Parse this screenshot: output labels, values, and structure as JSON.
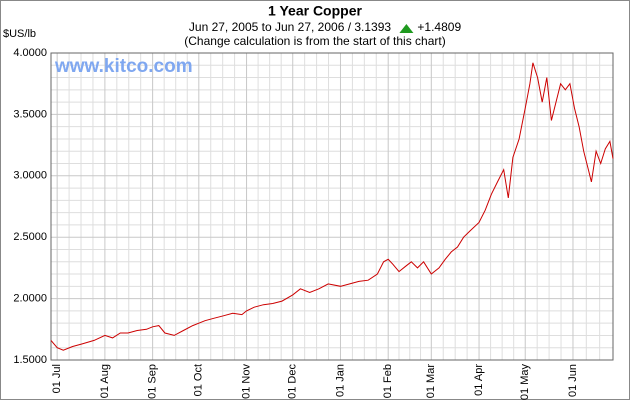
{
  "chart_data": {
    "type": "line",
    "title": "1 Year Copper",
    "subtitle": "Jun 27, 2005 to Jun 27, 2006  /  3.1393",
    "change": "+1.4809",
    "note": "(Change calculation is from the start of this chart)",
    "y_label": "$US/lb",
    "watermark": "www.kitco.com",
    "grid": true,
    "xlim": [
      0,
      365
    ],
    "xticks": [
      {
        "value": 4,
        "label": "01 Jul"
      },
      {
        "value": 35,
        "label": "01 Aug"
      },
      {
        "value": 66,
        "label": "01 Sep"
      },
      {
        "value": 96,
        "label": "01 Oct"
      },
      {
        "value": 127,
        "label": "01 Nov"
      },
      {
        "value": 157,
        "label": "01 Dec"
      },
      {
        "value": 188,
        "label": "01 Jan"
      },
      {
        "value": 219,
        "label": "01 Feb"
      },
      {
        "value": 247,
        "label": "01 Mar"
      },
      {
        "value": 278,
        "label": "01 Apr"
      },
      {
        "value": 308,
        "label": "01 May"
      },
      {
        "value": 339,
        "label": "01 Jun"
      }
    ],
    "ylim": [
      1.5,
      4.0
    ],
    "yticks": [
      {
        "value": 1.5,
        "label": "1.5000"
      },
      {
        "value": 2.0,
        "label": "2.0000"
      },
      {
        "value": 2.5,
        "label": "2.5000"
      },
      {
        "value": 3.0,
        "label": "3.0000"
      },
      {
        "value": 3.5,
        "label": "3.5000"
      },
      {
        "value": 4.0,
        "label": "4.0000"
      }
    ],
    "x": [
      0,
      4,
      8,
      14,
      20,
      28,
      35,
      40,
      45,
      50,
      56,
      62,
      66,
      70,
      74,
      80,
      86,
      92,
      96,
      100,
      106,
      112,
      118,
      124,
      127,
      132,
      138,
      144,
      150,
      157,
      162,
      168,
      174,
      180,
      188,
      194,
      200,
      206,
      212,
      216,
      219,
      222,
      226,
      230,
      234,
      238,
      242,
      247,
      252,
      256,
      260,
      264,
      268,
      272,
      278,
      282,
      286,
      290,
      294,
      297,
      300,
      304,
      308,
      311,
      313,
      316,
      319,
      322,
      325,
      328,
      331,
      334,
      337,
      340,
      343,
      346,
      349,
      351,
      354,
      357,
      360,
      363,
      365
    ],
    "series": [
      {
        "name": "Copper",
        "color": "#cc0000",
        "values": [
          1.66,
          1.6,
          1.58,
          1.61,
          1.63,
          1.66,
          1.7,
          1.68,
          1.72,
          1.72,
          1.74,
          1.75,
          1.77,
          1.78,
          1.72,
          1.7,
          1.74,
          1.78,
          1.8,
          1.82,
          1.84,
          1.86,
          1.88,
          1.87,
          1.9,
          1.93,
          1.95,
          1.96,
          1.98,
          2.03,
          2.08,
          2.05,
          2.08,
          2.12,
          2.1,
          2.12,
          2.14,
          2.15,
          2.2,
          2.3,
          2.32,
          2.28,
          2.22,
          2.26,
          2.3,
          2.25,
          2.3,
          2.2,
          2.25,
          2.32,
          2.38,
          2.42,
          2.5,
          2.55,
          2.62,
          2.72,
          2.85,
          2.95,
          3.05,
          2.82,
          3.15,
          3.3,
          3.55,
          3.75,
          3.92,
          3.8,
          3.6,
          3.8,
          3.45,
          3.6,
          3.75,
          3.7,
          3.75,
          3.55,
          3.4,
          3.2,
          3.05,
          2.95,
          3.2,
          3.1,
          3.22,
          3.28,
          3.14
        ]
      }
    ]
  }
}
